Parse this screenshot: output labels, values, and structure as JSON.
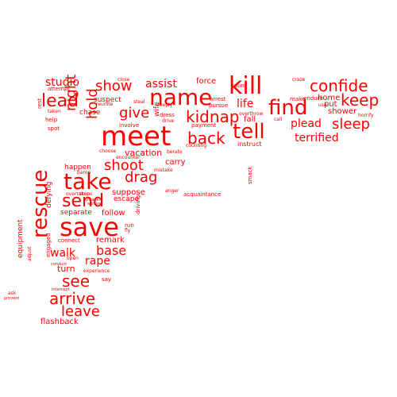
{
  "color": "#ff0000",
  "words": [
    "meet",
    "save",
    "rescue",
    "take",
    "kill",
    "name",
    "find",
    "tell",
    "lead",
    "send",
    "confide",
    "keep",
    "kidnap",
    "sleep",
    "back",
    "give",
    "show",
    "drag",
    "shoot",
    "see",
    "arrive",
    "leave",
    "night",
    "hold",
    "plead",
    "terrified",
    "assist",
    "studio",
    "base",
    "walk",
    "rape",
    "life",
    "remark",
    "carry",
    "force",
    "fall",
    "home",
    "put",
    "shower",
    "instruct",
    "vacation",
    "suppose",
    "escape",
    "follow",
    "turn",
    "separate",
    "defying",
    "equipment",
    "flashback",
    "chase",
    "suspect",
    "happen",
    "arrest",
    "pursue",
    "wife",
    "make",
    "endure",
    "attempt",
    "help",
    "rest",
    "spot",
    "taken",
    "close",
    "craze",
    "taunt",
    "steal",
    "deeply",
    "dress",
    "drive",
    "payment",
    "involve",
    "counting",
    "berate",
    "choose",
    "encounter",
    "baron",
    "mistake",
    "overtaken",
    "anger",
    "acquaintance",
    "smack",
    "driving",
    "run",
    "fly",
    "connect",
    "open",
    "engaged",
    "conduct",
    "experience",
    "say",
    "ask",
    "prevent",
    "horrify",
    "use",
    "call",
    "overthrow",
    "reunite",
    "adjust",
    "intercept",
    "steps",
    "unravel",
    "admire"
  ]
}
